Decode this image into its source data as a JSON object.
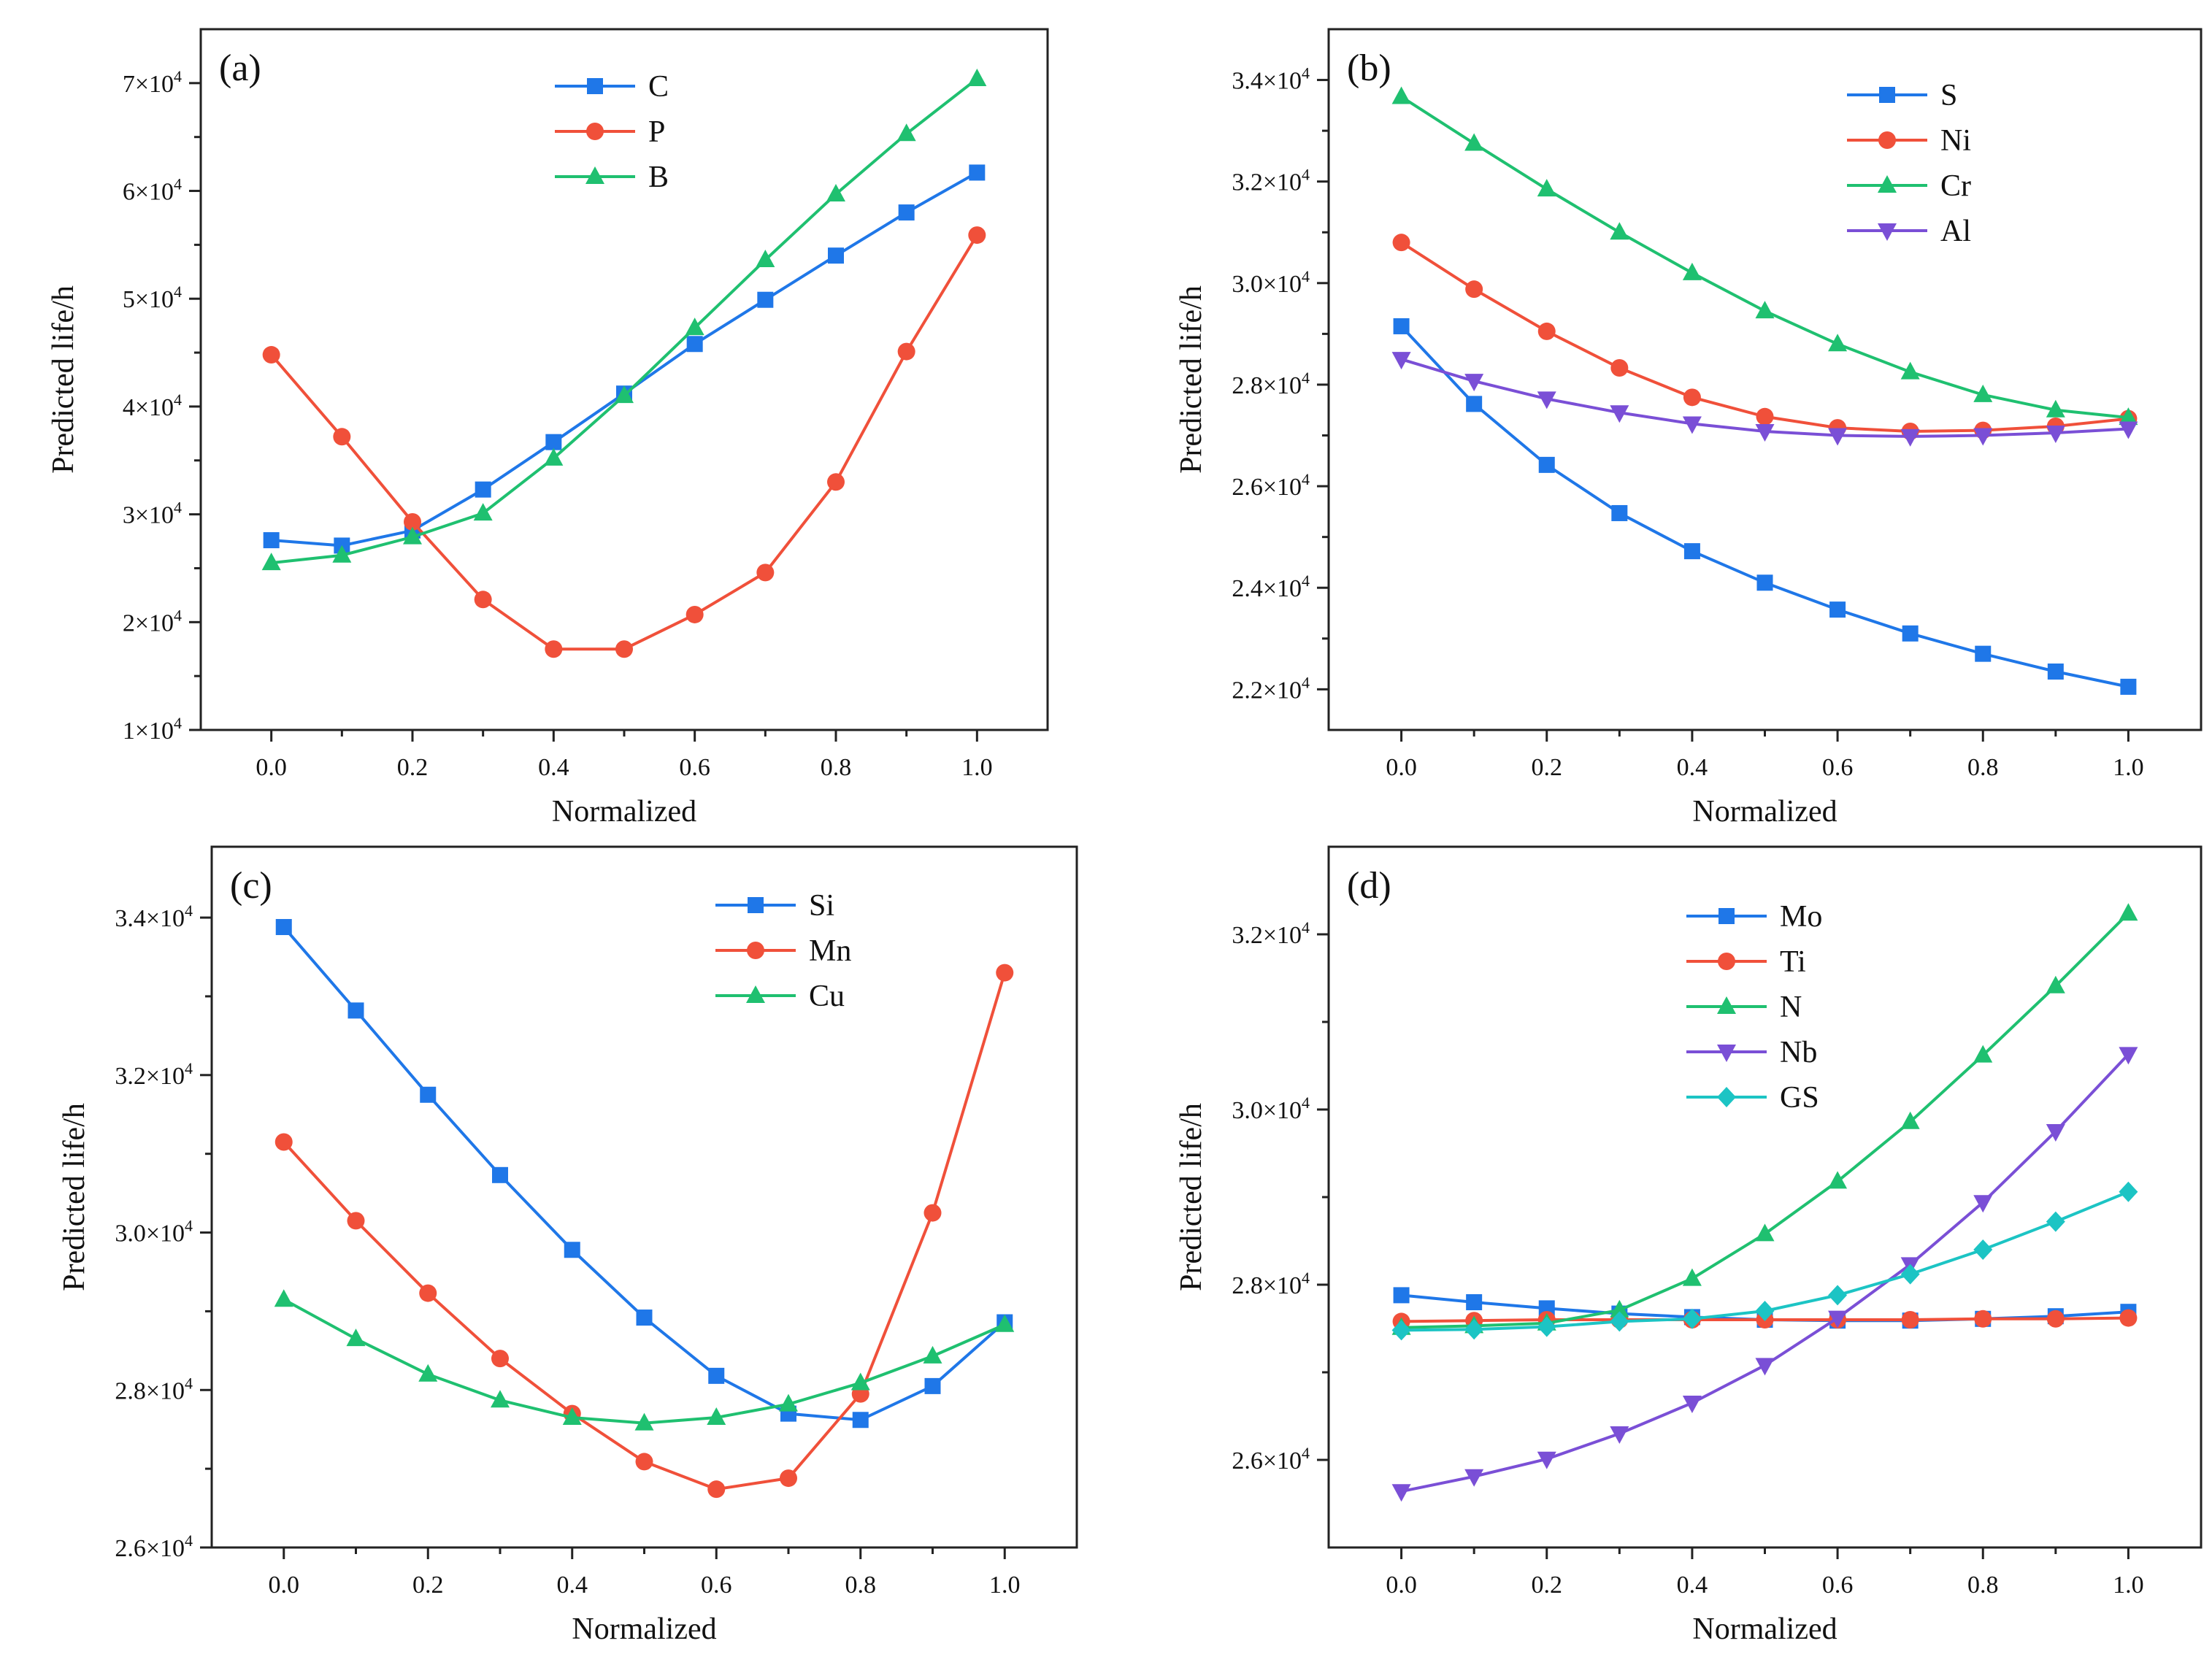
{
  "figure": {
    "colors": {
      "blue": "#1f77e8",
      "red": "#f0503a",
      "green": "#1fc070",
      "purple": "#7a4fd6",
      "cyan": "#1cc4c4"
    }
  },
  "chart_data": [
    {
      "type": "line",
      "panel_label": "(a)",
      "xlabel": "Normalized",
      "ylabel": "Predicted life/h",
      "xlim": [
        -0.1,
        1.1
      ],
      "ylim": [
        10000,
        75000
      ],
      "xticks": [
        0.0,
        0.2,
        0.4,
        0.6,
        0.8,
        1.0
      ],
      "xtick_labels": [
        "0.0",
        "0.2",
        "0.4",
        "0.6",
        "0.8",
        "1.0"
      ],
      "yticks": [
        10000,
        20000,
        30000,
        40000,
        50000,
        60000,
        70000
      ],
      "ytick_labels": [
        "1×10",
        "2×10",
        "3×10",
        "4×10",
        "5×10",
        "6×10",
        "7×10"
      ],
      "ytick_exponent": "4",
      "legend_position": "top-center",
      "x": [
        0.0,
        0.1,
        0.2,
        0.3,
        0.4,
        0.5,
        0.6,
        0.7,
        0.8,
        0.9,
        1.0
      ],
      "series": [
        {
          "name": "C",
          "color": "#1f77e8",
          "marker": "square",
          "values": [
            27600,
            27100,
            28500,
            32300,
            36700,
            41200,
            45800,
            49900,
            54000,
            58000,
            61700
          ]
        },
        {
          "name": "P",
          "color": "#f0503a",
          "marker": "circle",
          "values": [
            44800,
            37200,
            29300,
            22100,
            17500,
            17500,
            20700,
            24600,
            33000,
            45100,
            55900
          ]
        },
        {
          "name": "B",
          "color": "#1fc070",
          "marker": "triangle-up",
          "values": [
            25500,
            26200,
            27900,
            30100,
            35200,
            41000,
            47300,
            53600,
            59700,
            65300,
            70400
          ]
        }
      ]
    },
    {
      "type": "line",
      "panel_label": "(b)",
      "xlabel": "Normalized",
      "ylabel": "Predicted life/h",
      "xlim": [
        -0.1,
        1.1
      ],
      "ylim": [
        21200,
        35000
      ],
      "xticks": [
        0.0,
        0.2,
        0.4,
        0.6,
        0.8,
        1.0
      ],
      "xtick_labels": [
        "0.0",
        "0.2",
        "0.4",
        "0.6",
        "0.8",
        "1.0"
      ],
      "yticks": [
        22000,
        24000,
        26000,
        28000,
        30000,
        32000,
        34000
      ],
      "ytick_labels": [
        "2.2×10",
        "2.4×10",
        "2.6×10",
        "2.8×10",
        "3.0×10",
        "3.2×10",
        "3.4×10"
      ],
      "ytick_exponent": "4",
      "legend_position": "top-right",
      "x": [
        0.0,
        0.1,
        0.2,
        0.3,
        0.4,
        0.5,
        0.6,
        0.7,
        0.8,
        0.9,
        1.0
      ],
      "series": [
        {
          "name": "S",
          "color": "#1f77e8",
          "marker": "square",
          "values": [
            29150,
            27620,
            26420,
            25470,
            24720,
            24100,
            23570,
            23100,
            22700,
            22350,
            22050
          ]
        },
        {
          "name": "Ni",
          "color": "#f0503a",
          "marker": "circle",
          "values": [
            30800,
            29880,
            29050,
            28330,
            27750,
            27370,
            27150,
            27080,
            27100,
            27180,
            27330
          ]
        },
        {
          "name": "Cr",
          "color": "#1fc070",
          "marker": "triangle-up",
          "values": [
            33670,
            32750,
            31850,
            31000,
            30200,
            29450,
            28800,
            28250,
            27800,
            27500,
            27350
          ]
        },
        {
          "name": "Al",
          "color": "#7a4fd6",
          "marker": "triangle-down",
          "values": [
            28500,
            28070,
            27720,
            27450,
            27230,
            27080,
            27000,
            26980,
            27000,
            27050,
            27130
          ]
        }
      ]
    },
    {
      "type": "line",
      "panel_label": "(c)",
      "xlabel": "Normalized",
      "ylabel": "Predicted life/h",
      "xlim": [
        -0.1,
        1.1
      ],
      "ylim": [
        26000,
        34900
      ],
      "xticks": [
        0.0,
        0.2,
        0.4,
        0.6,
        0.8,
        1.0
      ],
      "xtick_labels": [
        "0.0",
        "0.2",
        "0.4",
        "0.6",
        "0.8",
        "1.0"
      ],
      "yticks": [
        26000,
        28000,
        30000,
        32000,
        34000
      ],
      "ytick_labels": [
        "2.6×10",
        "2.8×10",
        "3.0×10",
        "3.2×10",
        "3.4×10"
      ],
      "ytick_exponent": "4",
      "legend_position": "top-right",
      "x": [
        0.0,
        0.1,
        0.2,
        0.3,
        0.4,
        0.5,
        0.6,
        0.7,
        0.8,
        0.9,
        1.0
      ],
      "series": [
        {
          "name": "Si",
          "color": "#1f77e8",
          "marker": "square",
          "values": [
            33880,
            32820,
            31750,
            30730,
            29780,
            28920,
            28180,
            27700,
            27620,
            28050,
            28860
          ]
        },
        {
          "name": "Mn",
          "color": "#f0503a",
          "marker": "circle",
          "values": [
            31150,
            30150,
            29230,
            28400,
            27700,
            27090,
            26740,
            26880,
            27950,
            30250,
            33300
          ]
        },
        {
          "name": "Cu",
          "color": "#1fc070",
          "marker": "triangle-up",
          "values": [
            29150,
            28650,
            28200,
            27870,
            27650,
            27580,
            27650,
            27820,
            28090,
            28430,
            28830
          ]
        }
      ]
    },
    {
      "type": "line",
      "panel_label": "(d)",
      "xlabel": "Normalized",
      "ylabel": "Predicted life/h",
      "xlim": [
        -0.1,
        1.1
      ],
      "ylim": [
        25000,
        33000
      ],
      "xticks": [
        0.0,
        0.2,
        0.4,
        0.6,
        0.8,
        1.0
      ],
      "xtick_labels": [
        "0.0",
        "0.2",
        "0.4",
        "0.6",
        "0.8",
        "1.0"
      ],
      "yticks": [
        26000,
        28000,
        30000,
        32000
      ],
      "ytick_labels": [
        "2.6×10",
        "2.8×10",
        "3.0×10",
        "3.2×10"
      ],
      "ytick_exponent": "4",
      "legend_position": "top-center",
      "x": [
        0.0,
        0.1,
        0.2,
        0.3,
        0.4,
        0.5,
        0.6,
        0.7,
        0.8,
        0.9,
        1.0
      ],
      "series": [
        {
          "name": "Mo",
          "color": "#1f77e8",
          "marker": "square",
          "values": [
            27880,
            27800,
            27730,
            27670,
            27630,
            27600,
            27590,
            27590,
            27610,
            27640,
            27690
          ]
        },
        {
          "name": "Ti",
          "color": "#f0503a",
          "marker": "circle",
          "values": [
            27580,
            27590,
            27600,
            27600,
            27600,
            27600,
            27600,
            27600,
            27610,
            27610,
            27620
          ]
        },
        {
          "name": "N",
          "color": "#1fc070",
          "marker": "triangle-up",
          "values": [
            27510,
            27530,
            27560,
            27710,
            28070,
            28580,
            29180,
            29860,
            30620,
            31410,
            32240
          ]
        },
        {
          "name": "Nb",
          "color": "#7a4fd6",
          "marker": "triangle-down",
          "values": [
            25640,
            25810,
            26010,
            26300,
            26650,
            27080,
            27620,
            28230,
            28940,
            29750,
            30630
          ]
        },
        {
          "name": "GS",
          "color": "#1cc4c4",
          "marker": "diamond",
          "values": [
            27480,
            27490,
            27520,
            27580,
            27610,
            27700,
            27880,
            28120,
            28400,
            28720,
            29060
          ]
        }
      ]
    }
  ]
}
